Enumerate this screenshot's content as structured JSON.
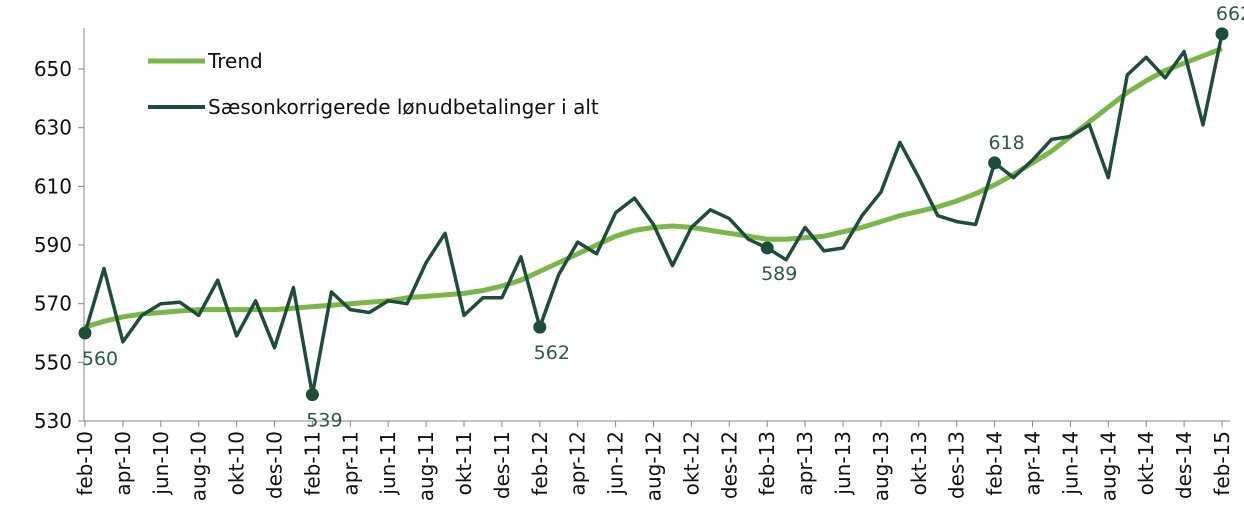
{
  "chart_data": {
    "type": "line",
    "categories": [
      "feb-10",
      null,
      "apr-10",
      null,
      "jun-10",
      null,
      "aug-10",
      null,
      "okt-10",
      null,
      "des-10",
      null,
      "feb-11",
      null,
      "apr-11",
      null,
      "jun-11",
      null,
      "aug-11",
      null,
      "okt-11",
      null,
      "des-11",
      null,
      "feb-12",
      null,
      "apr-12",
      null,
      "jun-12",
      null,
      "aug-12",
      null,
      "okt-12",
      null,
      "des-12",
      null,
      "feb-13",
      null,
      "apr-13",
      null,
      "jun-13",
      null,
      "aug-13",
      null,
      "okt-13",
      null,
      "des-13",
      null,
      "feb-14",
      null,
      "apr-14",
      null,
      "jun-14",
      null,
      "aug-14",
      null,
      "okt-14",
      null,
      "des-14",
      null,
      "feb-15"
    ],
    "series": [
      {
        "name": "Trend",
        "color": "#7ab648",
        "values": [
          562,
          564,
          565.5,
          566.5,
          567,
          567.5,
          568,
          568,
          568,
          568,
          568,
          568.5,
          569,
          569.5,
          570,
          570.5,
          571,
          572,
          572.5,
          573,
          573.5,
          574.5,
          576,
          578,
          581,
          584,
          587,
          590,
          593,
          595,
          596,
          596.5,
          596,
          595,
          594,
          593,
          592,
          592,
          592.5,
          593,
          594.5,
          596,
          598,
          600,
          601.5,
          603,
          605,
          607.5,
          610.5,
          614,
          618,
          622,
          627,
          632,
          637,
          642,
          646,
          649.5,
          652,
          654.5,
          657
        ]
      },
      {
        "name": "Sæsonkorrigerede lønudbetalinger i alt",
        "color": "#1e4d3a",
        "values": [
          560,
          582,
          557,
          566,
          570,
          570.5,
          566,
          578,
          559,
          571,
          555,
          575.5,
          539,
          574,
          568,
          567,
          571,
          570,
          584,
          594,
          566,
          572,
          572,
          586,
          562,
          580,
          591,
          587,
          601,
          606,
          597,
          583,
          596,
          602,
          599,
          592,
          589,
          585,
          596,
          588,
          589,
          600,
          608,
          625,
          613,
          600,
          598,
          597,
          618,
          613,
          619,
          626,
          627,
          631,
          613,
          648,
          654,
          647,
          656,
          631,
          662
        ],
        "data_labels": [
          0,
          12,
          24,
          36,
          48,
          60
        ]
      }
    ],
    "ylim": [
      530,
      664
    ],
    "yticks": [
      530,
      550,
      570,
      590,
      610,
      630,
      650
    ],
    "grid": false
  }
}
